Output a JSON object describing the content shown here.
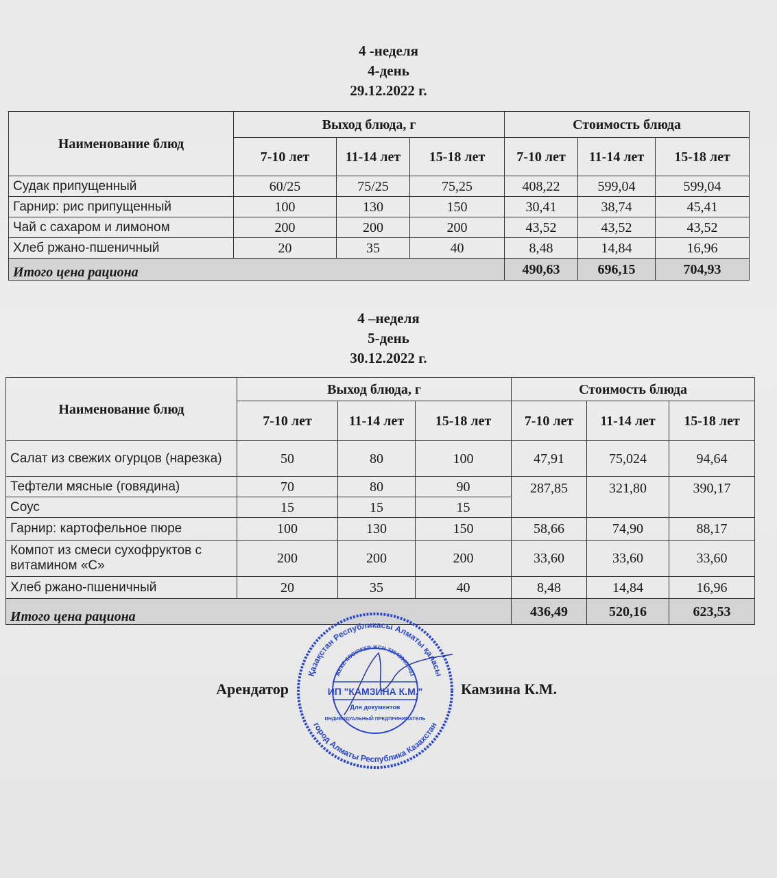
{
  "section1": {
    "week": "4 -неделя",
    "day": "4-день",
    "date": "29.12.2022 г.",
    "headers": {
      "name": "Наименование блюд",
      "yield": "Выход блюда, г",
      "cost": "Стоимость блюда",
      "ages": [
        "7-10 лет",
        "11-14 лет",
        "15-18 лет"
      ]
    },
    "rows": [
      {
        "name": "Судак припущенный",
        "yield": [
          "60/25",
          "75/25",
          "75,25"
        ],
        "cost": [
          "408,22",
          "599,04",
          "599,04"
        ]
      },
      {
        "name": "Гарнир: рис припущенный",
        "yield": [
          "100",
          "130",
          "150"
        ],
        "cost": [
          "30,41",
          "38,74",
          "45,41"
        ]
      },
      {
        "name": "Чай с сахаром и лимоном",
        "yield": [
          "200",
          "200",
          "200"
        ],
        "cost": [
          "43,52",
          "43,52",
          "43,52"
        ]
      },
      {
        "name": "Хлеб ржано-пшеничный",
        "yield": [
          "20",
          "35",
          "40"
        ],
        "cost": [
          "8,48",
          "14,84",
          "16,96"
        ]
      }
    ],
    "total": {
      "label": "Итого цена рациона",
      "values": [
        "490,63",
        "696,15",
        "704,93"
      ]
    }
  },
  "section2": {
    "week": "4 –неделя",
    "day": "5-день",
    "date": "30.12.2022 г.",
    "headers": {
      "name": "Наименование блюд",
      "yield": "Выход блюда, г",
      "cost": "Стоимость блюда",
      "ages": [
        "7-10 лет",
        "11-14 лет",
        "15-18 лет"
      ]
    },
    "rows": [
      {
        "name": "Салат из свежих огурцов (нарезка)",
        "yield": [
          "50",
          "80",
          "100"
        ],
        "cost": [
          "47,91",
          "75,024",
          "94,64"
        ]
      },
      {
        "name": "Тефтели мясные (говядина)",
        "yield": [
          "70",
          "80",
          "90"
        ],
        "cost": [
          "287,85",
          "321,80",
          "390,17"
        ]
      },
      {
        "name": "Соус",
        "yield": [
          "15",
          "15",
          "15"
        ]
      },
      {
        "name": "Гарнир: картофельное пюре",
        "yield": [
          "100",
          "130",
          "150"
        ],
        "cost": [
          "58,66",
          "74,90",
          "88,17"
        ]
      },
      {
        "name": "Компот из смеси сухофруктов с витамином «С»",
        "yield": [
          "200",
          "200",
          "200"
        ],
        "cost": [
          "33,60",
          "33,60",
          "33,60"
        ]
      },
      {
        "name": "Хлеб ржано-пшеничный",
        "yield": [
          "20",
          "35",
          "40"
        ],
        "cost": [
          "8,48",
          "14,84",
          "16,96"
        ]
      }
    ],
    "total": {
      "label": "Итого цена рациона",
      "values": [
        "436,49",
        "520,16",
        "623,53"
      ]
    }
  },
  "signature": {
    "role": "Арендатор",
    "name": "Камзина К.М."
  },
  "stamp": {
    "outer_top": "Қазақстан Республикасы Алматы қаласы",
    "outer_bottom": "город Алматы Республика Казахстан",
    "inner_top": "ЖЕКЕ КӘСІПКЕР ЖСН 720430400481",
    "center": "ИП \"КАМЗИНА К.М.\"",
    "sub": "Для документов",
    "inner_bottom": "ИНДИВИДУАЛЬНЫЙ ПРЕДПРИНИМАТЕЛЬ",
    "color": "#2a47c9"
  }
}
